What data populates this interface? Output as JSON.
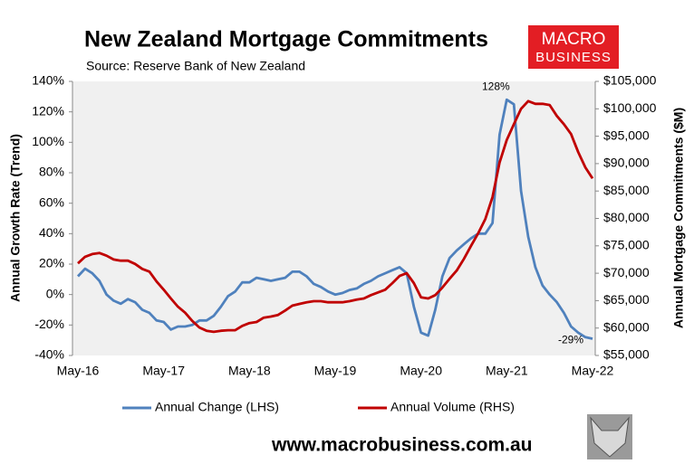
{
  "chart_data": {
    "type": "line",
    "title": "New Zealand Mortgage Commitments",
    "subtitle": "Source: Reserve Bank of New Zealand",
    "ylabel": "Annual Growth Rate (Trend)",
    "y2label": "Annual Mortgage Commitments ($M)",
    "logo": [
      "MACRO",
      "BUSINESS"
    ],
    "footer": "www.macrobusiness.com.au",
    "categories": [
      "May-16",
      null,
      null,
      null,
      null,
      null,
      null,
      null,
      null,
      null,
      null,
      null,
      "May-17",
      null,
      null,
      null,
      null,
      null,
      null,
      null,
      null,
      null,
      null,
      null,
      "May-18",
      null,
      null,
      null,
      null,
      null,
      null,
      null,
      null,
      null,
      null,
      null,
      "May-19",
      null,
      null,
      null,
      null,
      null,
      null,
      null,
      null,
      null,
      null,
      null,
      "May-20",
      null,
      null,
      null,
      null,
      null,
      null,
      null,
      null,
      null,
      null,
      null,
      "May-21",
      null,
      null,
      null,
      null,
      null,
      null,
      null,
      null,
      null,
      null,
      null,
      "May-22"
    ],
    "series": [
      {
        "name": "Annual Change (LHS)",
        "color": "#4f81bd",
        "axis": "y",
        "values": [
          12,
          17,
          14,
          9,
          0,
          -4,
          -6,
          -3,
          -5,
          -10,
          -12,
          -17,
          -18,
          -23,
          -21,
          -21,
          -20,
          -17,
          -17,
          -14,
          -8,
          -1,
          2,
          8,
          8,
          11,
          10,
          9,
          10,
          11,
          15,
          15,
          12,
          7,
          5,
          2,
          0,
          1,
          3,
          4,
          7,
          9,
          12,
          14,
          16,
          18,
          14,
          -8,
          -25,
          -27,
          -10,
          12,
          24,
          29,
          33,
          37,
          40,
          40,
          47,
          105,
          128,
          125,
          68,
          38,
          18,
          6,
          0,
          -5,
          -12,
          -21,
          -25,
          -28,
          -29
        ],
        "value_labels": [
          null,
          null,
          null,
          null,
          null,
          null,
          null,
          null,
          null,
          null,
          null,
          null,
          null,
          null,
          null,
          null,
          null,
          null,
          null,
          null,
          null,
          null,
          null,
          null,
          null,
          null,
          null,
          null,
          null,
          null,
          null,
          null,
          null,
          null,
          null,
          null,
          null,
          null,
          null,
          null,
          null,
          null,
          null,
          null,
          null,
          null,
          null,
          null,
          null,
          null,
          null,
          null,
          null,
          null,
          null,
          null,
          null,
          null,
          null,
          null,
          "128%",
          null,
          null,
          null,
          null,
          null,
          null,
          null,
          null,
          null,
          null,
          null,
          "-29%"
        ]
      },
      {
        "name": "Annual Volume (RHS)",
        "color": "#c00000",
        "axis": "y2",
        "values": [
          71800,
          73000,
          73500,
          73700,
          73200,
          72500,
          72300,
          72300,
          71700,
          70800,
          70300,
          68500,
          67000,
          65400,
          63900,
          62800,
          61300,
          60100,
          59500,
          59300,
          59500,
          59600,
          59600,
          60400,
          60900,
          61100,
          61900,
          62100,
          62400,
          63200,
          64100,
          64400,
          64700,
          64900,
          64900,
          64700,
          64700,
          64700,
          64900,
          65200,
          65400,
          66000,
          66500,
          67000,
          68200,
          69500,
          70000,
          68200,
          65600,
          65400,
          66000,
          67400,
          69000,
          70500,
          72600,
          75000,
          77300,
          79900,
          83900,
          90200,
          94300,
          97200,
          100000,
          101400,
          100900,
          100900,
          100700,
          98700,
          97200,
          95400,
          92100,
          89300,
          87300
        ]
      }
    ],
    "ylim": [
      -40,
      140
    ],
    "yticks": [
      {
        "value": -40,
        "label": "-40%"
      },
      {
        "value": -20,
        "label": "-20%"
      },
      {
        "value": 0,
        "label": "0%"
      },
      {
        "value": 20,
        "label": "20%"
      },
      {
        "value": 40,
        "label": "40%"
      },
      {
        "value": 60,
        "label": "60%"
      },
      {
        "value": 80,
        "label": "80%"
      },
      {
        "value": 100,
        "label": "100%"
      },
      {
        "value": 120,
        "label": "120%"
      },
      {
        "value": 140,
        "label": "140%"
      }
    ],
    "y2lim": [
      55000,
      105000
    ],
    "y2ticks": [
      {
        "value": 55000,
        "label": "$55,000"
      },
      {
        "value": 60000,
        "label": "$60,000"
      },
      {
        "value": 65000,
        "label": "$65,000"
      },
      {
        "value": 70000,
        "label": "$70,000"
      },
      {
        "value": 75000,
        "label": "$75,000"
      },
      {
        "value": 80000,
        "label": "$80,000"
      },
      {
        "value": 85000,
        "label": "$85,000"
      },
      {
        "value": 90000,
        "label": "$90,000"
      },
      {
        "value": 95000,
        "label": "$95,000"
      },
      {
        "value": 100000,
        "label": "$100,000"
      },
      {
        "value": 105000,
        "label": "$105,000"
      }
    ],
    "legend": "bottom"
  }
}
